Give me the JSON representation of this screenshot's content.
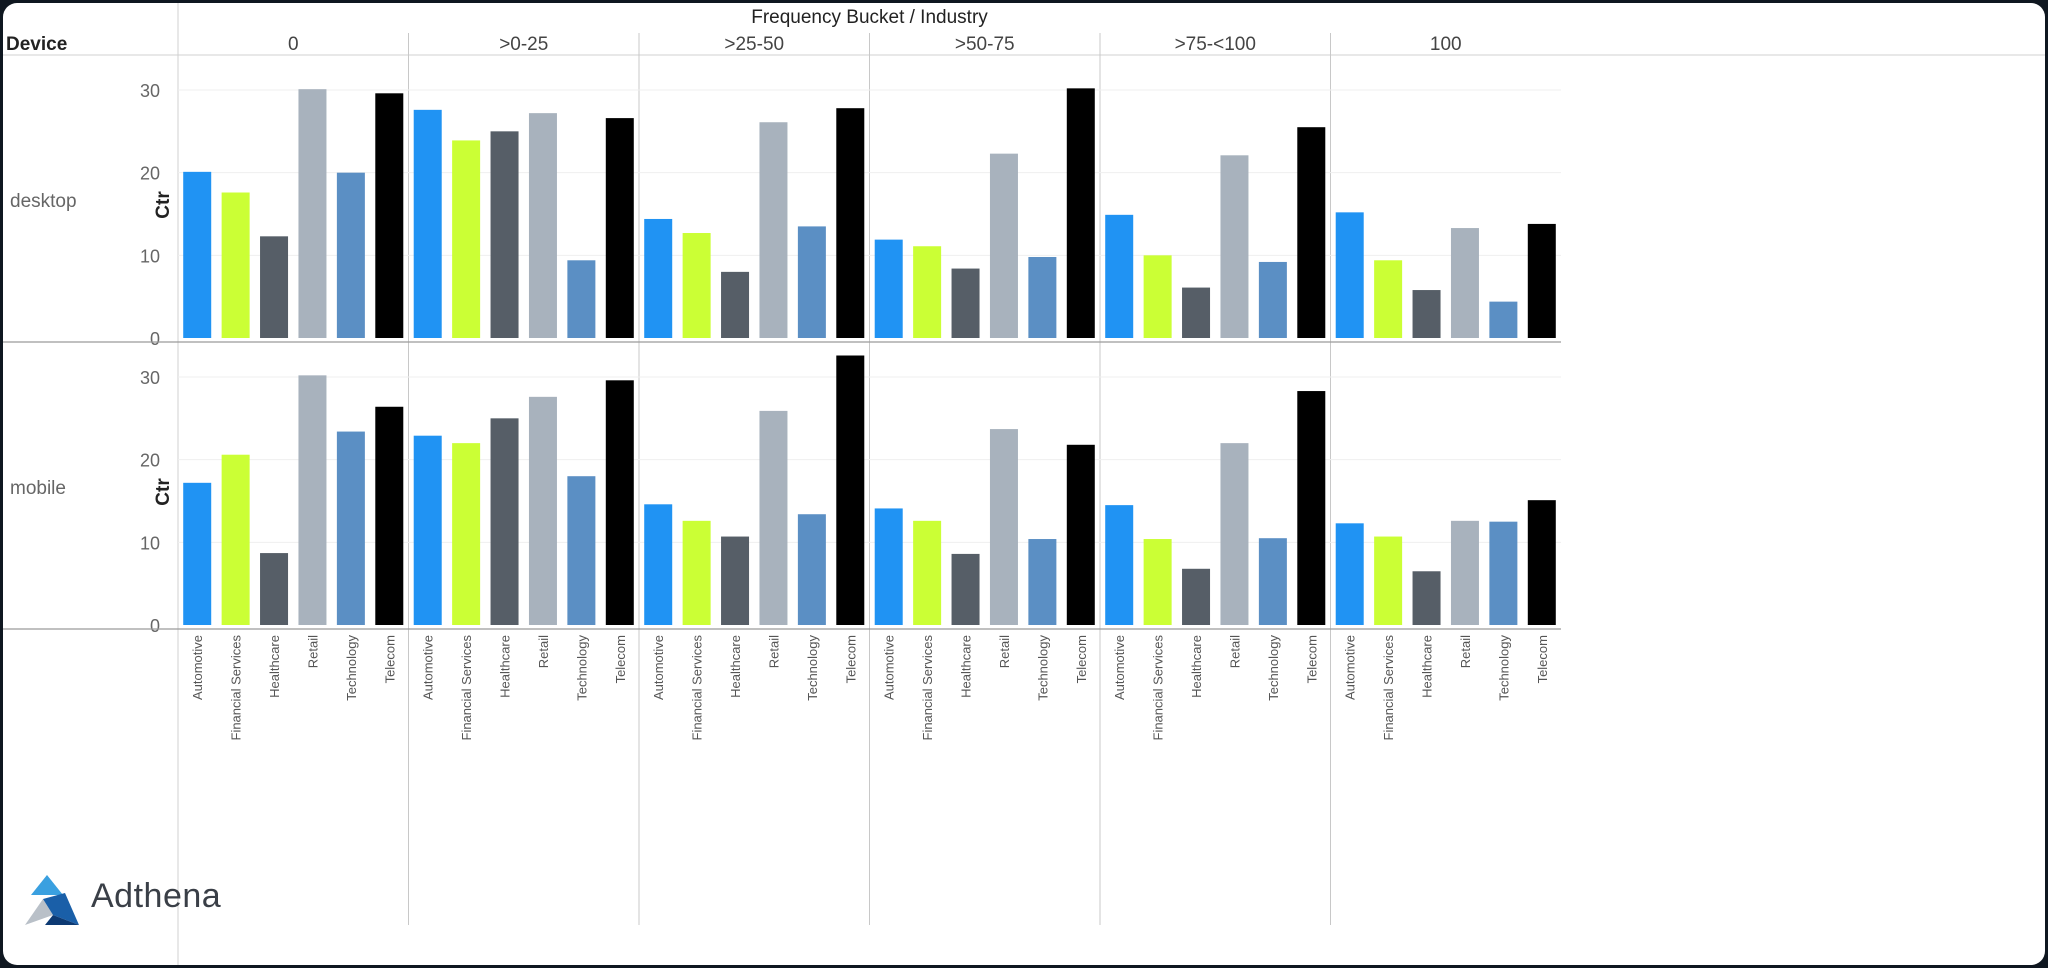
{
  "chart_data": {
    "type": "bar",
    "column_header_title": "Frequency Bucket / Industry",
    "row_header_title": "Device",
    "y_axis_label": "Ctr",
    "ylim": [
      0,
      33
    ],
    "y_ticks": [
      0,
      10,
      20,
      30
    ],
    "buckets": [
      "0",
      ">0-25",
      ">25-50",
      ">50-75",
      ">75-<100",
      "100"
    ],
    "industries": [
      "Automotive",
      "Financial Services",
      "Healthcare",
      "Retail",
      "Technology",
      "Telecom"
    ],
    "industry_colors": {
      "Automotive": "#2093f3",
      "Financial Services": "#cbff35",
      "Healthcare": "#565e67",
      "Retail": "#a8b2bd",
      "Technology": "#5b8fc4",
      "Telecom": "#000000"
    },
    "rows": [
      {
        "device": "desktop",
        "values": [
          [
            20.1,
            17.6,
            12.3,
            30.1,
            20.0,
            29.6
          ],
          [
            27.6,
            23.9,
            25.0,
            27.2,
            9.4,
            26.6
          ],
          [
            14.4,
            12.7,
            8.0,
            26.1,
            13.5,
            27.8
          ],
          [
            11.9,
            11.1,
            8.4,
            22.3,
            9.8,
            30.2
          ],
          [
            14.9,
            10.0,
            6.1,
            22.1,
            9.2,
            25.5
          ],
          [
            15.2,
            9.4,
            5.8,
            13.3,
            4.4,
            13.8
          ]
        ]
      },
      {
        "device": "mobile",
        "values": [
          [
            17.2,
            20.6,
            8.7,
            30.2,
            23.4,
            26.4
          ],
          [
            22.9,
            22.0,
            25.0,
            27.6,
            18.0,
            29.6
          ],
          [
            14.6,
            12.6,
            10.7,
            25.9,
            13.4,
            32.6
          ],
          [
            14.1,
            12.6,
            8.6,
            23.7,
            10.4,
            21.8
          ],
          [
            14.5,
            10.4,
            6.8,
            22.0,
            10.5,
            28.3
          ],
          [
            12.3,
            10.7,
            6.5,
            12.6,
            12.5,
            15.1
          ]
        ]
      }
    ]
  },
  "logo": {
    "text": "Adthena",
    "icon": "adthena-logo-icon"
  }
}
